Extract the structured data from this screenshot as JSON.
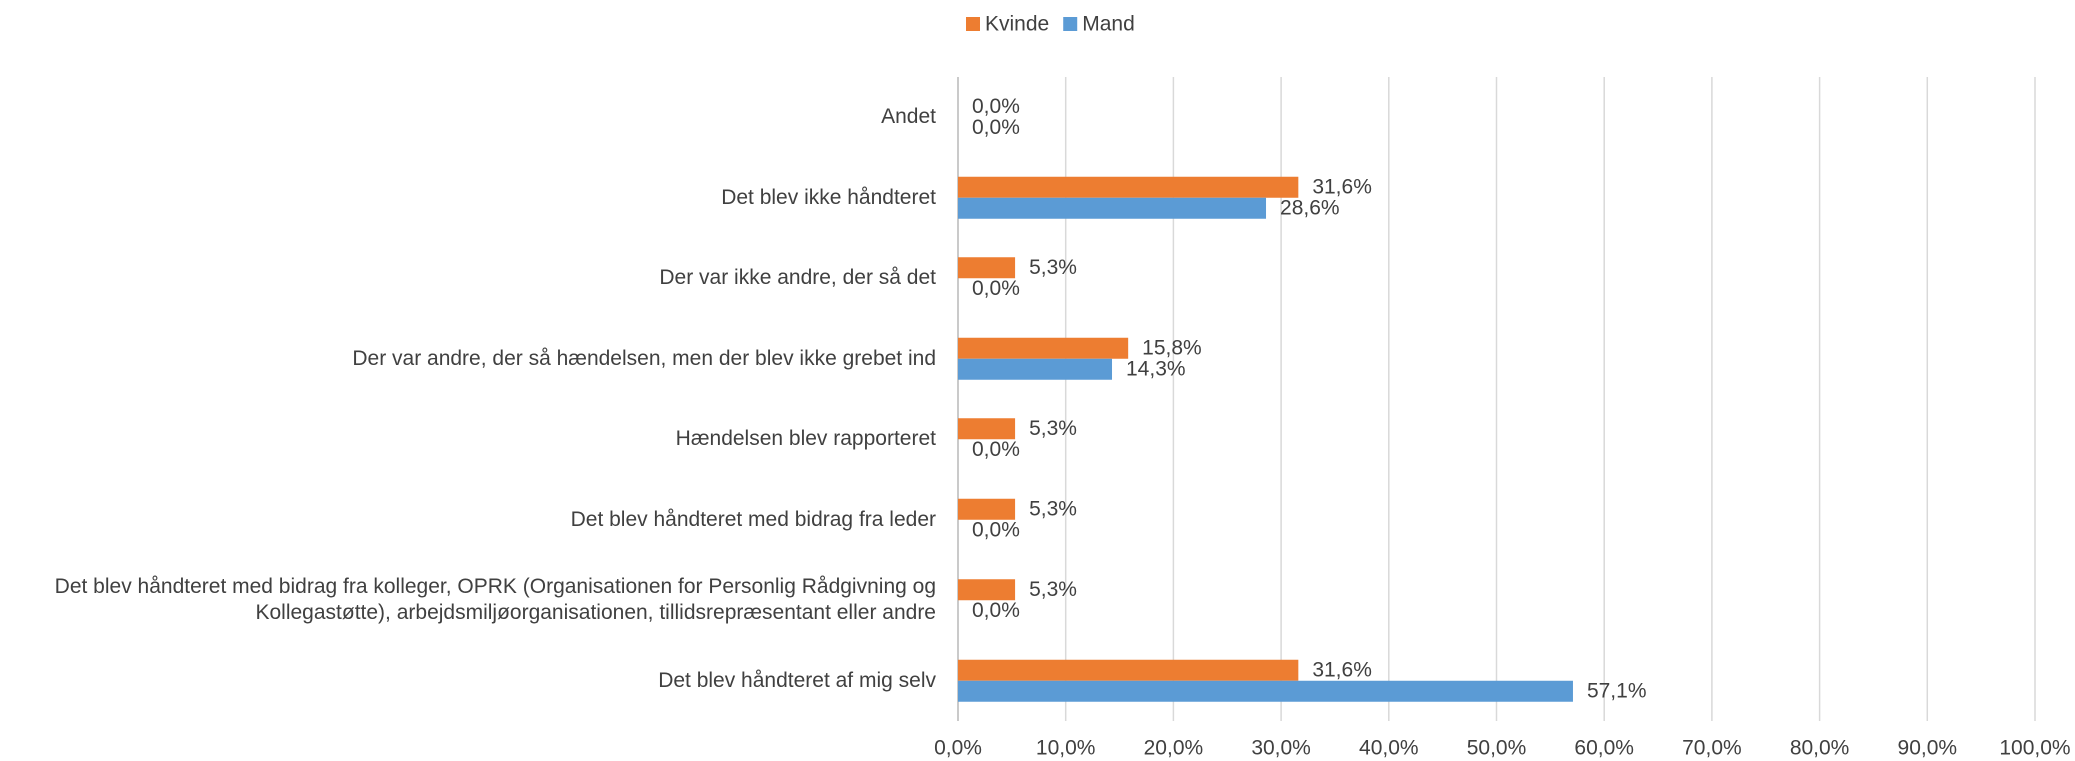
{
  "chart_data": {
    "type": "hbar",
    "categories": [
      "Andet",
      "Det blev ikke håndteret",
      "Der var ikke andre, der så det",
      "Der var andre, der så hændelsen, men der blev ikke grebet ind",
      "Hændelsen blev rapporteret",
      "Det blev håndteret med bidrag fra leder",
      "Det blev håndteret med bidrag fra kolleger, OPRK (Organisationen for Personlig Rådgivning og Kollegastøtte), arbejdsmiljøorganisationen, tillidsrepræsentant eller andre",
      "Det blev håndteret af mig selv"
    ],
    "series": [
      {
        "name": "Kvinde",
        "color": "#ED7D31",
        "values": [
          0,
          31.6,
          5.3,
          15.8,
          5.3,
          5.3,
          5.3,
          31.6
        ],
        "value_labels": [
          "0,0%",
          "31,6%",
          "5,3%",
          "15,8%",
          "5,3%",
          "5,3%",
          "5,3%",
          "31,6%"
        ]
      },
      {
        "name": "Mand",
        "color": "#5B9BD5",
        "values": [
          0,
          28.6,
          0,
          14.3,
          0,
          0,
          0,
          57.1
        ],
        "value_labels": [
          "0,0%",
          "28,6%",
          "0,0%",
          "14,3%",
          "0,0%",
          "0,0%",
          "0,0%",
          "57,1%"
        ]
      }
    ],
    "xlim": [
      0,
      100
    ],
    "xticks": [
      {
        "value": 0,
        "label": "0,0%"
      },
      {
        "value": 10,
        "label": "10,0%"
      },
      {
        "value": 20,
        "label": "20,0%"
      },
      {
        "value": 30,
        "label": "30,0%"
      },
      {
        "value": 40,
        "label": "40,0%"
      },
      {
        "value": 50,
        "label": "50,0%"
      },
      {
        "value": 60,
        "label": "60,0%"
      },
      {
        "value": 70,
        "label": "70,0%"
      },
      {
        "value": 80,
        "label": "80,0%"
      },
      {
        "value": 90,
        "label": "90,0%"
      },
      {
        "value": 100,
        "label": "100,0%"
      }
    ],
    "grid": true,
    "legend": "top"
  }
}
